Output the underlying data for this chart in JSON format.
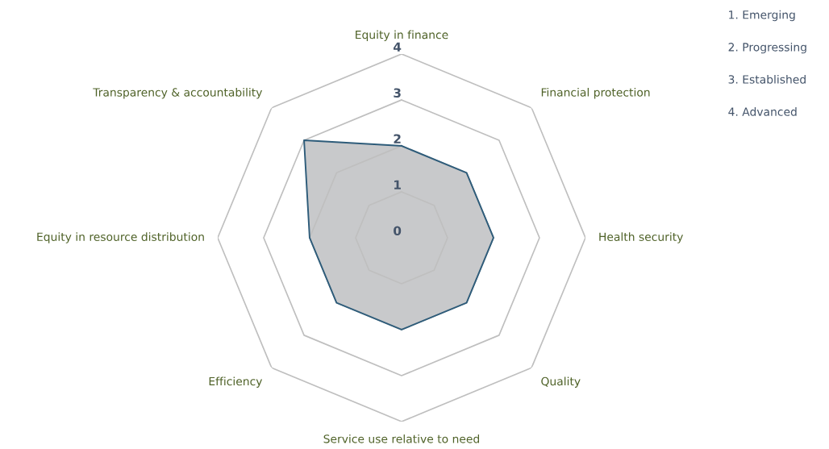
{
  "chart_data": {
    "type": "radar",
    "categories": [
      "Equity in finance",
      "Financial protection",
      "Health security",
      "Quality",
      "Service use relative to need",
      "Efficiency",
      "Equity in resource distribution",
      "Transparency & accountability"
    ],
    "series": [
      {
        "color": "#2e5c7a",
        "values": [
          2,
          2,
          2,
          2,
          2,
          2,
          2,
          3
        ]
      }
    ],
    "ylim": [
      0,
      4
    ],
    "yticks": [
      0,
      1,
      2,
      3,
      4
    ],
    "grid": true,
    "annotations": [
      "1. Emerging",
      "2. Progressing",
      "3. Established",
      "4. Advanced"
    ]
  }
}
